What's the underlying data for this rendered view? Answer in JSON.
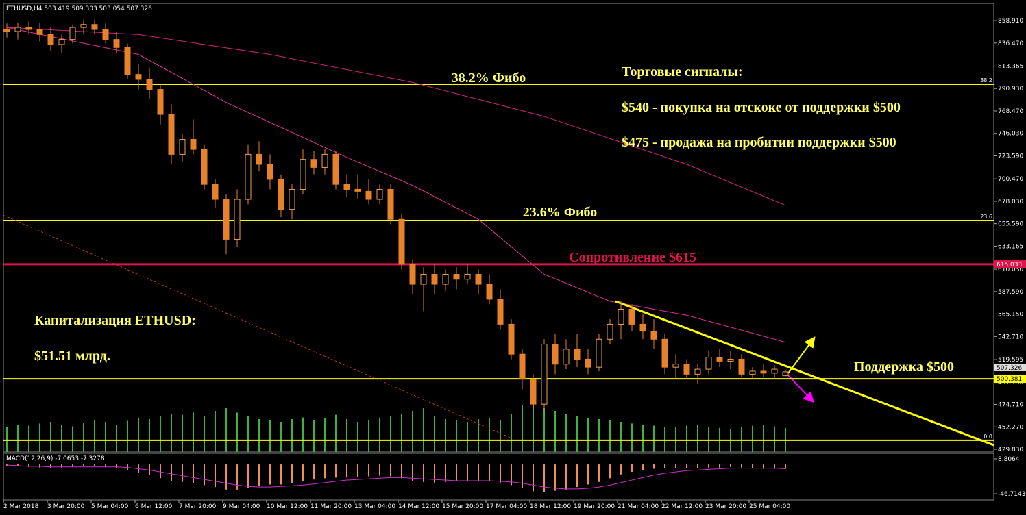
{
  "header": "ETHUSD,H4  503.419 509.303 503.054 507.326",
  "chart_data": {
    "type": "candlestick",
    "categories": [
      "2 Mar 2018",
      null,
      null,
      null,
      "3 Mar 20:00",
      null,
      null,
      null,
      "5 Mar 04:00",
      null,
      null,
      null,
      "6 Mar 12:00",
      null,
      null,
      null,
      "7 Mar 20:00",
      null,
      null,
      null,
      "9 Mar 04:00",
      null,
      null,
      null,
      "10 Mar 12:00",
      null,
      null,
      null,
      "11 Mar 20:00",
      null,
      null,
      null,
      "13 Mar 04:00",
      null,
      null,
      null,
      "14 Mar 12:00",
      null,
      null,
      null,
      "15 Mar 20:00",
      null,
      null,
      null,
      "17 Mar 04:00",
      null,
      null,
      null,
      "18 Mar 12:00",
      null,
      null,
      null,
      "19 Mar 20:00",
      null,
      null,
      null,
      "21 Mar 04:00",
      null,
      null,
      null,
      "22 Mar 12:00",
      null,
      null,
      null,
      "23 Mar 20:00",
      null,
      null,
      null,
      "25 Mar 04:00",
      null,
      null,
      null
    ],
    "open": [
      850,
      848,
      852,
      850,
      845,
      835,
      840,
      852,
      855,
      850,
      840,
      832,
      805,
      800,
      790,
      765,
      725,
      740,
      730,
      695,
      680,
      640,
      680,
      725,
      715,
      700,
      670,
      690,
      720,
      712,
      725,
      695,
      690,
      688,
      680,
      690,
      660,
      615,
      595,
      605,
      595,
      605,
      600,
      605,
      595,
      580,
      555,
      525,
      500,
      475,
      535,
      515,
      530,
      520,
      512,
      540,
      555,
      570,
      555,
      548,
      540,
      512,
      515,
      505,
      510,
      522,
      518,
      520,
      505,
      508,
      506,
      503.419
    ],
    "high": [
      856,
      857,
      858,
      857,
      852,
      845,
      855,
      860,
      860,
      856,
      848,
      836,
      815,
      812,
      795,
      775,
      745,
      760,
      735,
      700,
      685,
      690,
      735,
      738,
      725,
      705,
      695,
      730,
      728,
      730,
      728,
      705,
      705,
      700,
      695,
      695,
      665,
      620,
      612,
      615,
      610,
      612,
      615,
      610,
      605,
      590,
      560,
      530,
      505,
      540,
      545,
      540,
      545,
      530,
      545,
      560,
      578,
      575,
      565,
      560,
      545,
      525,
      520,
      515,
      528,
      530,
      528,
      525,
      512,
      515,
      514,
      509.303
    ],
    "low": [
      842,
      840,
      845,
      838,
      828,
      826,
      836,
      845,
      845,
      836,
      826,
      800,
      790,
      780,
      755,
      715,
      718,
      725,
      690,
      672,
      625,
      632,
      675,
      708,
      690,
      662,
      660,
      685,
      705,
      705,
      690,
      682,
      680,
      675,
      675,
      655,
      610,
      585,
      568,
      585,
      588,
      590,
      595,
      585,
      575,
      550,
      520,
      490,
      465,
      468,
      505,
      510,
      512,
      505,
      508,
      535,
      540,
      548,
      540,
      530,
      505,
      500,
      500,
      495,
      505,
      512,
      510,
      502,
      500,
      502,
      500,
      503.054
    ],
    "close": [
      848,
      852,
      850,
      845,
      835,
      840,
      852,
      855,
      850,
      840,
      832,
      805,
      800,
      790,
      765,
      725,
      740,
      730,
      695,
      680,
      640,
      680,
      725,
      715,
      700,
      670,
      690,
      720,
      712,
      725,
      695,
      690,
      688,
      680,
      690,
      660,
      615,
      595,
      605,
      595,
      605,
      600,
      605,
      595,
      580,
      555,
      525,
      500,
      475,
      535,
      515,
      530,
      520,
      512,
      540,
      555,
      570,
      555,
      548,
      540,
      512,
      515,
      505,
      510,
      522,
      518,
      520,
      505,
      508,
      506,
      510,
      507.326
    ],
    "up_color": "#f0a050",
    "down_color": "#e8822a",
    "ylim": [
      427.1,
      879.5
    ],
    "yticks": [
      {
        "value": 858.91,
        "label": "858.910"
      },
      {
        "value": 836.47,
        "label": "836.470"
      },
      813.365,
      {
        "value": 790.93,
        "label": "790.930"
      },
      {
        "value": 768.47,
        "label": "768.470"
      },
      {
        "value": 746.03,
        "label": "746.030"
      },
      {
        "value": 723.59,
        "label": "723.590"
      },
      {
        "value": 700.47,
        "label": "700.470"
      },
      {
        "value": 678.03,
        "label": "678.030"
      },
      {
        "value": 655.59,
        "label": "655.590"
      },
      633.165,
      {
        "value": 610.03,
        "label": "610.030"
      },
      {
        "value": 587.59,
        "label": "587.590"
      },
      {
        "value": 565.15,
        "label": "565.150"
      },
      {
        "value": 542.71,
        "label": "542.710"
      },
      519.595,
      {
        "value": 497.15,
        "label": "497.150"
      },
      {
        "value": 474.71,
        "label": "474.710"
      },
      {
        "value": 452.27,
        "label": "452.270"
      },
      {
        "value": 429.83,
        "label": "429.830"
      }
    ],
    "lines": [
      {
        "color": "#e0359a",
        "x": [
          0,
          12,
          20,
          31,
          37,
          43,
          49,
          55,
          62,
          71
        ],
        "values": [
          852,
          825,
          777,
          722,
          694,
          660,
          605,
          578,
          564,
          537
        ]
      },
      {
        "color": "#c8287a",
        "x": [
          0,
          12,
          24,
          37,
          49,
          62,
          71
        ],
        "values": [
          852,
          845,
          825,
          797,
          763,
          715,
          674
        ]
      }
    ],
    "levels": [
      {
        "value": 795.2,
        "color": "#ffff00",
        "label": "38.2"
      },
      {
        "value": 658.8,
        "color": "#ffff00",
        "label": "23.6"
      },
      {
        "value": 615.033,
        "color": "#e0144c"
      },
      {
        "value": 500.381,
        "color": "#ffff00"
      },
      {
        "value": 438.8,
        "color": "#ffff00",
        "label": "0.0"
      }
    ],
    "trendlines": [
      {
        "color": "#ffff00",
        "x": [
          55.5,
          90
        ],
        "values": [
          578,
          434
        ]
      },
      {
        "color": "#c83232",
        "dashed": true,
        "x": [
          -0.3,
          46
        ],
        "values": [
          664,
          441
        ]
      }
    ],
    "annotations": [
      {
        "text": "38.2% Фибо",
        "color": "#ffff66"
      },
      {
        "text": "23.6% Фибо",
        "color": "#ffff66"
      },
      {
        "text": "Сопротивление  $615",
        "color": "#e0144c"
      },
      {
        "text": "Торговые сигналы:",
        "color": "#ffff66"
      },
      {
        "text": "$540 - покупка на отскоке от поддержки $500",
        "color": "#ffff66"
      },
      {
        "text": "$475 - продажа на пробитии поддержки $500",
        "color": "#ffff66"
      },
      {
        "text": "Капитализация ETHUSD:",
        "color": "#ffff66"
      },
      {
        "text": "$51.51 млрд.",
        "color": "#ffff66"
      },
      {
        "text": "Поддержка $500",
        "color": "#ffff66"
      }
    ],
    "volume": {
      "color": "#3cb43c",
      "lim": [
        0,
        100
      ],
      "values": [
        45,
        50,
        48,
        52,
        55,
        50,
        47,
        53,
        58,
        55,
        50,
        57,
        62,
        60,
        65,
        70,
        68,
        72,
        66,
        75,
        80,
        72,
        65,
        60,
        58,
        55,
        60,
        63,
        58,
        62,
        68,
        60,
        55,
        58,
        62,
        65,
        70,
        75,
        80,
        66,
        60,
        58,
        55,
        60,
        62,
        58,
        70,
        85,
        88,
        80,
        75,
        70,
        65,
        62,
        60,
        58,
        55,
        52,
        50,
        48,
        46,
        45,
        48,
        50,
        46,
        44,
        42,
        45,
        48,
        50,
        47,
        44
      ]
    },
    "macd": {
      "label": "MACD(12,26,9) -7.0653 -7.3278",
      "color": "#f09050",
      "signal_color": "#c832c8",
      "ylim": [
        -56.5,
        17.5
      ],
      "yticks": [
        8.8064,
        -46.7143
      ],
      "histogram": [
        -2,
        -3,
        -4,
        -5,
        -6,
        -5,
        -4,
        -3,
        -3,
        -4,
        -6,
        -9,
        -13,
        -17,
        -22,
        -26,
        -28,
        -30,
        -33,
        -36,
        -40,
        -40,
        -37,
        -34,
        -32,
        -32,
        -30,
        -27,
        -24,
        -22,
        -21,
        -21,
        -20,
        -19,
        -18,
        -19,
        -22,
        -26,
        -28,
        -29,
        -28,
        -27,
        -26,
        -26,
        -27,
        -29,
        -33,
        -38,
        -43,
        -44,
        -42,
        -40,
        -36,
        -32,
        -28,
        -22,
        -16,
        -12,
        -9,
        -7,
        -6,
        -6,
        -6,
        -6,
        -5,
        -5,
        -4,
        -5,
        -6,
        -7,
        -7,
        -7
      ],
      "signal": [
        -1,
        -2,
        -3,
        -3,
        -4,
        -4,
        -4,
        -4,
        -4,
        -4,
        -4,
        -5,
        -7,
        -9,
        -12,
        -15,
        -18,
        -21,
        -24,
        -27,
        -30,
        -33,
        -35,
        -36,
        -36,
        -35,
        -34,
        -33,
        -31,
        -29,
        -27,
        -25,
        -24,
        -23,
        -22,
        -21,
        -21,
        -22,
        -23,
        -24,
        -25,
        -26,
        -26,
        -26,
        -26,
        -27,
        -28,
        -30,
        -33,
        -36,
        -38,
        -39,
        -39,
        -38,
        -36,
        -33,
        -29,
        -25,
        -21,
        -17,
        -14,
        -12,
        -10,
        -9,
        -8,
        -7,
        -6,
        -6,
        -6,
        -6,
        -6,
        -7
      ]
    }
  }
}
